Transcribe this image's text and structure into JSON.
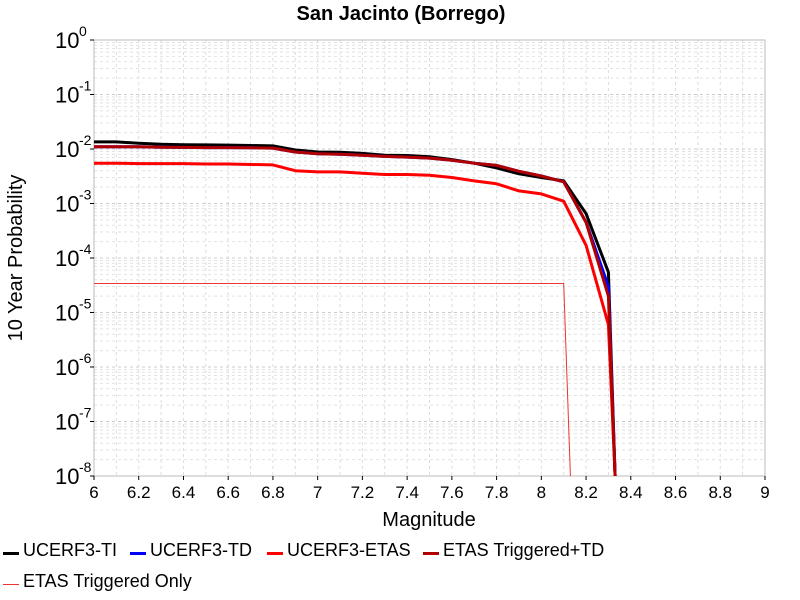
{
  "chart_data": {
    "type": "line",
    "title": "San Jacinto (Borrego)",
    "xlabel": "Magnitude",
    "ylabel": "10 Year Probability",
    "xlim": [
      6,
      9
    ],
    "ylim": [
      1e-08,
      1
    ],
    "yscale": "log",
    "grid": true,
    "legend_position": "bottom",
    "x_ticks": [
      "6",
      "6.2",
      "6.4",
      "6.6",
      "6.8",
      "7",
      "7.2",
      "7.4",
      "7.6",
      "7.8",
      "8",
      "8.2",
      "8.4",
      "8.6",
      "8.8",
      "9"
    ],
    "y_ticks": [
      {
        "base": "10",
        "exp": "0"
      },
      {
        "base": "10",
        "exp": "-1"
      },
      {
        "base": "10",
        "exp": "-2"
      },
      {
        "base": "10",
        "exp": "-3"
      },
      {
        "base": "10",
        "exp": "-4"
      },
      {
        "base": "10",
        "exp": "-5"
      },
      {
        "base": "10",
        "exp": "-6"
      },
      {
        "base": "10",
        "exp": "-7"
      },
      {
        "base": "10",
        "exp": "-8"
      }
    ],
    "series": [
      {
        "name": "UCERF3-TI",
        "color": "#000000",
        "width": 3,
        "x": [
          6,
          6.1,
          6.2,
          6.3,
          6.4,
          6.5,
          6.6,
          6.7,
          6.8,
          6.9,
          7.0,
          7.1,
          7.2,
          7.3,
          7.4,
          7.5,
          7.6,
          7.7,
          7.8,
          7.9,
          8.0,
          8.1,
          8.2,
          8.3,
          8.33
        ],
        "y": [
          0.0135,
          0.0135,
          0.0128,
          0.0122,
          0.012,
          0.0119,
          0.0118,
          0.0116,
          0.0114,
          0.0096,
          0.0088,
          0.0087,
          0.0083,
          0.0077,
          0.0076,
          0.0072,
          0.0064,
          0.0055,
          0.0045,
          0.0035,
          0.003,
          0.0026,
          0.00065,
          5.5e-05,
          1e-08
        ]
      },
      {
        "name": "UCERF3-TD",
        "color": "#0000ff",
        "width": 3,
        "x": [
          6,
          6.1,
          6.2,
          6.3,
          6.4,
          6.5,
          6.6,
          6.7,
          6.8,
          6.9,
          7.0,
          7.1,
          7.2,
          7.3,
          7.4,
          7.5,
          7.6,
          7.7,
          7.8,
          7.9,
          8.0,
          8.1,
          8.2,
          8.3,
          8.33
        ],
        "y": [
          0.011,
          0.011,
          0.011,
          0.0108,
          0.0107,
          0.0106,
          0.0106,
          0.0105,
          0.0104,
          0.0088,
          0.0082,
          0.008,
          0.0077,
          0.0073,
          0.0071,
          0.0068,
          0.0062,
          0.0055,
          0.005,
          0.0039,
          0.0032,
          0.0025,
          0.00045,
          3e-05,
          1e-08
        ]
      },
      {
        "name": "UCERF3-ETAS",
        "color": "#ff0000",
        "width": 3,
        "x": [
          6,
          6.1,
          6.2,
          6.3,
          6.4,
          6.5,
          6.6,
          6.7,
          6.8,
          6.9,
          7.0,
          7.1,
          7.2,
          7.3,
          7.4,
          7.5,
          7.6,
          7.7,
          7.8,
          7.9,
          8.0,
          8.1,
          8.2,
          8.3,
          8.33
        ],
        "y": [
          0.0055,
          0.0055,
          0.0054,
          0.0054,
          0.0054,
          0.0053,
          0.0053,
          0.0052,
          0.0051,
          0.004,
          0.0038,
          0.0038,
          0.0036,
          0.0034,
          0.0034,
          0.0033,
          0.003,
          0.0026,
          0.0023,
          0.0017,
          0.0015,
          0.0011,
          0.00017,
          6e-06,
          1e-08
        ]
      },
      {
        "name": "ETAS Triggered+TD",
        "color": "#b00000",
        "width": 3,
        "x": [
          6,
          6.1,
          6.2,
          6.3,
          6.4,
          6.5,
          6.6,
          6.7,
          6.8,
          6.9,
          7.0,
          7.1,
          7.2,
          7.3,
          7.4,
          7.5,
          7.6,
          7.7,
          7.8,
          7.9,
          8.0,
          8.1,
          8.2,
          8.3,
          8.33
        ],
        "y": [
          0.011,
          0.011,
          0.011,
          0.0108,
          0.0107,
          0.0106,
          0.0106,
          0.0105,
          0.0104,
          0.0088,
          0.0082,
          0.008,
          0.0077,
          0.0073,
          0.0071,
          0.0068,
          0.0062,
          0.0055,
          0.005,
          0.0039,
          0.0032,
          0.0025,
          0.00045,
          2e-05,
          1e-08
        ]
      },
      {
        "name": "ETAS Triggered Only",
        "color": "#ee3333",
        "width": 1,
        "x": [
          6,
          8.1,
          8.13
        ],
        "y": [
          3.4e-05,
          3.4e-05,
          1e-08
        ]
      }
    ]
  }
}
